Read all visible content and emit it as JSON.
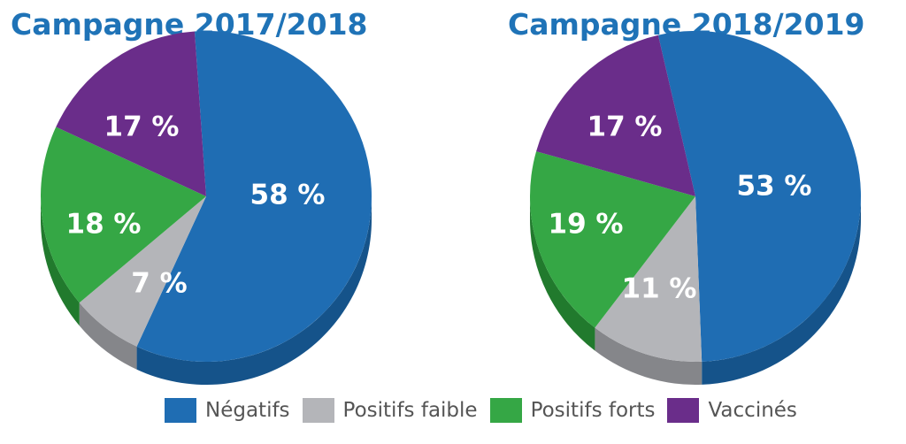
{
  "chart_data": [
    {
      "type": "pie",
      "title": "Campagne 2017/2018",
      "categories": [
        "Négatifs",
        "Positifs faible",
        "Positifs forts",
        "Vaccinés"
      ],
      "values": [
        58,
        7,
        18,
        17
      ],
      "labels": [
        "58 %",
        "7 %",
        "18 %",
        "17 %"
      ]
    },
    {
      "type": "pie",
      "title": "Campagne 2018/2019",
      "categories": [
        "Négatifs",
        "Positifs faible",
        "Positifs forts",
        "Vaccinés"
      ],
      "values": [
        53,
        11,
        19,
        17
      ],
      "labels": [
        "53 %",
        "11 %",
        "19 %",
        "17 %"
      ]
    }
  ],
  "legend": [
    {
      "label": "Négatifs",
      "color": "#1f6db3"
    },
    {
      "label": "Positifs faible",
      "color": "#b4b5b9"
    },
    {
      "label": "Positifs forts",
      "color": "#35a745"
    },
    {
      "label": "Vaccinés",
      "color": "#6a2d8a"
    }
  ],
  "colors": {
    "title": "#1f73b7",
    "side": [
      "#15538a",
      "#85868a",
      "#217a2d",
      "#4a1d63"
    ]
  }
}
